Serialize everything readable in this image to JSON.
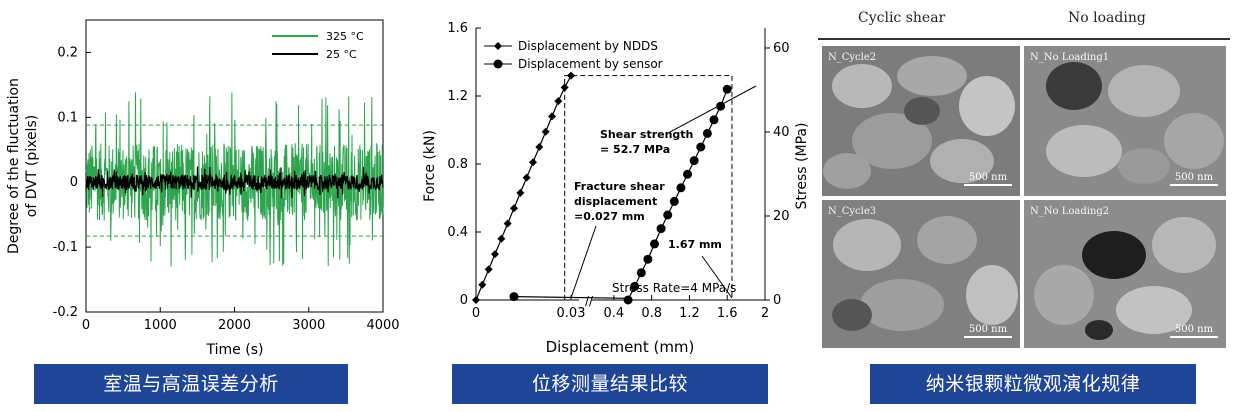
{
  "panels": {
    "left": {
      "caption": "室温与高温误差分析",
      "chart_data": {
        "type": "line",
        "xlabel": "Time (s)",
        "ylabel_line1": "Degree of the fluctuation",
        "ylabel_line2": "of DVT (pixels)",
        "xlim": [
          0,
          4000
        ],
        "ylim": [
          -0.2,
          0.25
        ],
        "x_ticks": [
          "0",
          "1000",
          "2000",
          "3000",
          "4000"
        ],
        "y_ticks": [
          "-0.2",
          "-0.1",
          "0",
          "0.1",
          "0.2"
        ],
        "series": [
          {
            "name": "325 °C",
            "color": "#2ea44f",
            "amplitude": 0.06,
            "peak_max": 0.14,
            "peak_min": -0.13
          },
          {
            "name": "25 °C",
            "color": "#000000",
            "amplitude": 0.012,
            "peak_max": 0.025,
            "peak_min": -0.025
          }
        ],
        "reference_lines": [
          0.088,
          -0.083
        ]
      }
    },
    "middle": {
      "caption": "位移测量结果比较",
      "chart_data": {
        "type": "line",
        "xlabel": "Displacement (mm)",
        "ylabel_left": "Force (kN)",
        "ylabel_right": "Stress (MPa)",
        "ylim_left": [
          0,
          1.6
        ],
        "ylim_right": [
          0,
          60
        ],
        "x_ticks_left_segment": [
          "0",
          "0.03"
        ],
        "x_ticks_right_segment": [
          "0.4",
          "0.8",
          "1.2",
          "1.6",
          "2"
        ],
        "y_ticks_left": [
          "0",
          "0.4",
          "0.8",
          "1.2",
          "1.6"
        ],
        "y_ticks_right": [
          "0",
          "20",
          "40",
          "60"
        ],
        "series": [
          {
            "name": "Displacement by NDDS",
            "marker": "diamond",
            "x": [
              0,
              0.002,
              0.004,
              0.006,
              0.008,
              0.01,
              0.012,
              0.014,
              0.016,
              0.018,
              0.02,
              0.022,
              0.024,
              0.026,
              0.028,
              0.03
            ],
            "y": [
              0,
              0.09,
              0.18,
              0.27,
              0.36,
              0.45,
              0.54,
              0.63,
              0.72,
              0.81,
              0.9,
              0.99,
              1.08,
              1.17,
              1.25,
              1.32
            ]
          },
          {
            "name": "Displacement by sensor",
            "marker": "circle",
            "x": [
              0.55,
              0.62,
              0.69,
              0.76,
              0.83,
              0.9,
              0.97,
              1.04,
              1.11,
              1.18,
              1.25,
              1.32,
              1.39,
              1.46,
              1.53,
              1.6
            ],
            "y": [
              0.0,
              0.08,
              0.16,
              0.24,
              0.33,
              0.42,
              0.5,
              0.58,
              0.66,
              0.74,
              0.82,
              0.9,
              0.98,
              1.06,
              1.14,
              1.24
            ]
          }
        ],
        "annotations": {
          "shear_strength": [
            "Shear strength",
            "= 52.7 MPa"
          ],
          "fracture": [
            "Fracture shear",
            "displacement",
            "=0.027 mm"
          ],
          "disp": "1.67 mm",
          "rate": "Stress Rate=4 MPa/s"
        }
      }
    },
    "right": {
      "caption": "纳米银颗粒微观演化规律",
      "headers": [
        "Cyclic shear",
        "No loading"
      ],
      "cells": [
        {
          "label": "N_Cycle2",
          "scale": "500 nm"
        },
        {
          "label": "N_No Loading1",
          "scale": "500 nm"
        },
        {
          "label": "N_Cycle3",
          "scale": "500 nm"
        },
        {
          "label": "N_No Loading2",
          "scale": "500 nm"
        }
      ]
    }
  }
}
